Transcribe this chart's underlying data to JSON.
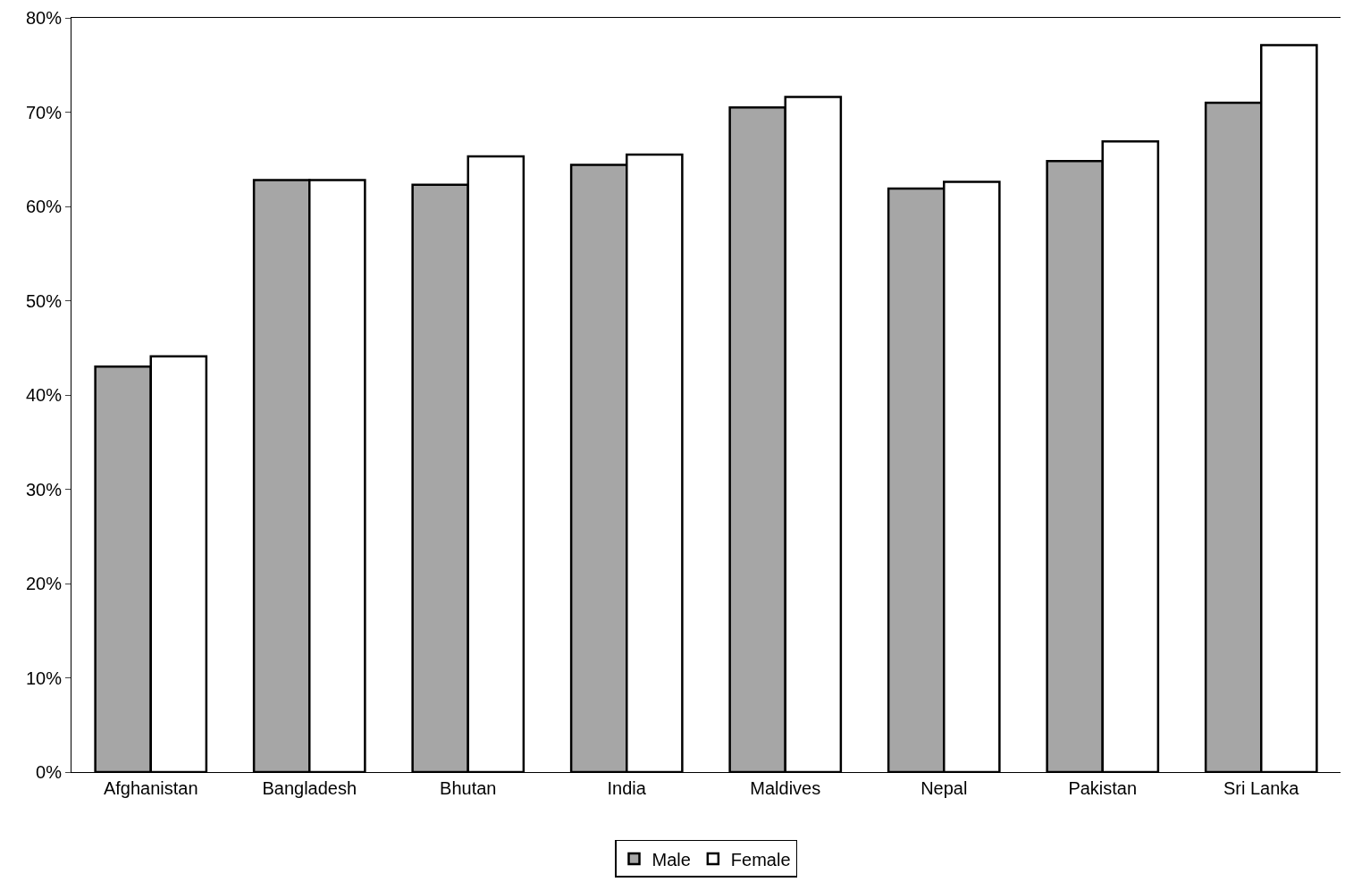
{
  "chart_data": {
    "type": "bar",
    "categories": [
      "Afghanistan",
      "Bangladesh",
      "Bhutan",
      "India",
      "Maldives",
      "Nepal",
      "Pakistan",
      "Sri Lanka"
    ],
    "series": [
      {
        "name": "Male",
        "color": "#a6a6a6",
        "values": [
          43.0,
          62.8,
          62.3,
          64.4,
          70.5,
          61.9,
          64.8,
          71.0
        ]
      },
      {
        "name": "Female",
        "color": "#ffffff",
        "values": [
          44.1,
          62.8,
          65.3,
          65.5,
          71.6,
          62.6,
          66.9,
          77.1
        ]
      }
    ],
    "ylim": [
      0,
      80
    ],
    "yticks": [
      {
        "value": 0,
        "label": "0%"
      },
      {
        "value": 10,
        "label": "10%"
      },
      {
        "value": 20,
        "label": "20%"
      },
      {
        "value": 30,
        "label": "30%"
      },
      {
        "value": 40,
        "label": "40%"
      },
      {
        "value": 50,
        "label": "50%"
      },
      {
        "value": 60,
        "label": "60%"
      },
      {
        "value": 70,
        "label": "70%"
      },
      {
        "value": 80,
        "label": "80%"
      }
    ],
    "grid": false,
    "legend": "bottom"
  }
}
